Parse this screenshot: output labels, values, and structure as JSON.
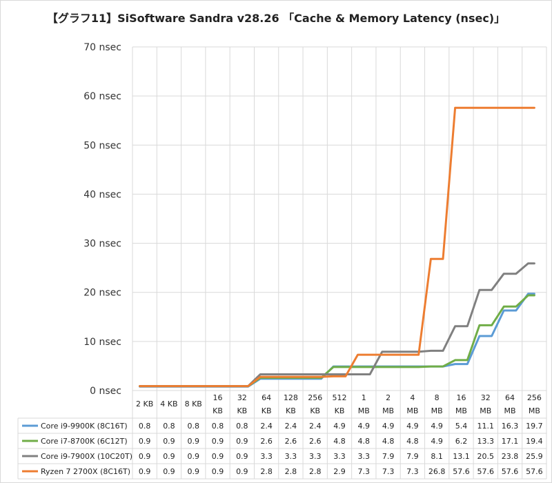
{
  "chart_data": {
    "type": "line",
    "title": "【グラフ11】SiSoftware Sandra v28.26 「Cache & Memory Latency (nsec)」",
    "ylim": [
      0,
      70
    ],
    "yticks": [
      "0 nsec",
      "10 nsec",
      "20 nsec",
      "30 nsec",
      "40 nsec",
      "50 nsec",
      "60 nsec",
      "70 nsec"
    ],
    "grid": true,
    "step": true,
    "categories": [
      [
        "2 KB"
      ],
      [
        "4 KB"
      ],
      [
        "8 KB"
      ],
      [
        "16",
        "KB"
      ],
      [
        "32",
        "KB"
      ],
      [
        "64",
        "KB"
      ],
      [
        "128",
        "KB"
      ],
      [
        "256",
        "KB"
      ],
      [
        "512",
        "KB"
      ],
      [
        "1",
        "MB"
      ],
      [
        "2",
        "MB"
      ],
      [
        "4",
        "MB"
      ],
      [
        "8",
        "MB"
      ],
      [
        "16",
        "MB"
      ],
      [
        "32",
        "MB"
      ],
      [
        "64",
        "MB"
      ],
      [
        "256",
        "MB"
      ]
    ],
    "series": [
      {
        "name": "Core i9-9900K (8C16T)",
        "color": "#5b9bd5",
        "values": [
          0.8,
          0.8,
          0.8,
          0.8,
          0.8,
          2.4,
          2.4,
          2.4,
          4.9,
          4.9,
          4.9,
          4.9,
          4.9,
          5.4,
          11.1,
          16.3,
          19.7
        ],
        "labels": [
          "0.8",
          "0.8",
          "0.8",
          "0.8",
          "0.8",
          "2.4",
          "2.4",
          "2.4",
          "4.9",
          "4.9",
          "4.9",
          "4.9",
          "4.9",
          "5.4",
          "11.1",
          "16.3",
          "19.7"
        ]
      },
      {
        "name": "Core i7-8700K (6C12T)",
        "color": "#70ad47",
        "values": [
          0.9,
          0.9,
          0.9,
          0.9,
          0.9,
          2.6,
          2.6,
          2.6,
          4.8,
          4.8,
          4.8,
          4.8,
          4.9,
          6.2,
          13.3,
          17.1,
          19.4
        ],
        "labels": [
          "0.9",
          "0.9",
          "0.9",
          "0.9",
          "0.9",
          "2.6",
          "2.6",
          "2.6",
          "4.8",
          "4.8",
          "4.8",
          "4.8",
          "4.9",
          "6.2",
          "13.3",
          "17.1",
          "19.4"
        ]
      },
      {
        "name": "Core i9-7900X (10C20T)",
        "color": "#808080",
        "values": [
          0.9,
          0.9,
          0.9,
          0.9,
          0.9,
          3.3,
          3.3,
          3.3,
          3.3,
          3.3,
          7.9,
          7.9,
          8.1,
          13.1,
          20.5,
          23.8,
          25.9
        ],
        "labels": [
          "0.9",
          "0.9",
          "0.9",
          "0.9",
          "0.9",
          "3.3",
          "3.3",
          "3.3",
          "3.3",
          "3.3",
          "7.9",
          "7.9",
          "8.1",
          "13.1",
          "20.5",
          "23.8",
          "25.9"
        ]
      },
      {
        "name": "Ryzen 7 2700X (8C16T)",
        "color": "#ed7d31",
        "values": [
          0.9,
          0.9,
          0.9,
          0.9,
          0.9,
          2.8,
          2.8,
          2.8,
          2.9,
          7.3,
          7.3,
          7.3,
          26.8,
          57.6,
          57.6,
          57.6,
          57.6
        ],
        "labels": [
          "0.9",
          "0.9",
          "0.9",
          "0.9",
          "0.9",
          "2.8",
          "2.8",
          "2.8",
          "2.9",
          "7.3",
          "7.3",
          "7.3",
          "26.8",
          "57.6",
          "57.6",
          "57.6",
          "57.6"
        ]
      }
    ]
  }
}
